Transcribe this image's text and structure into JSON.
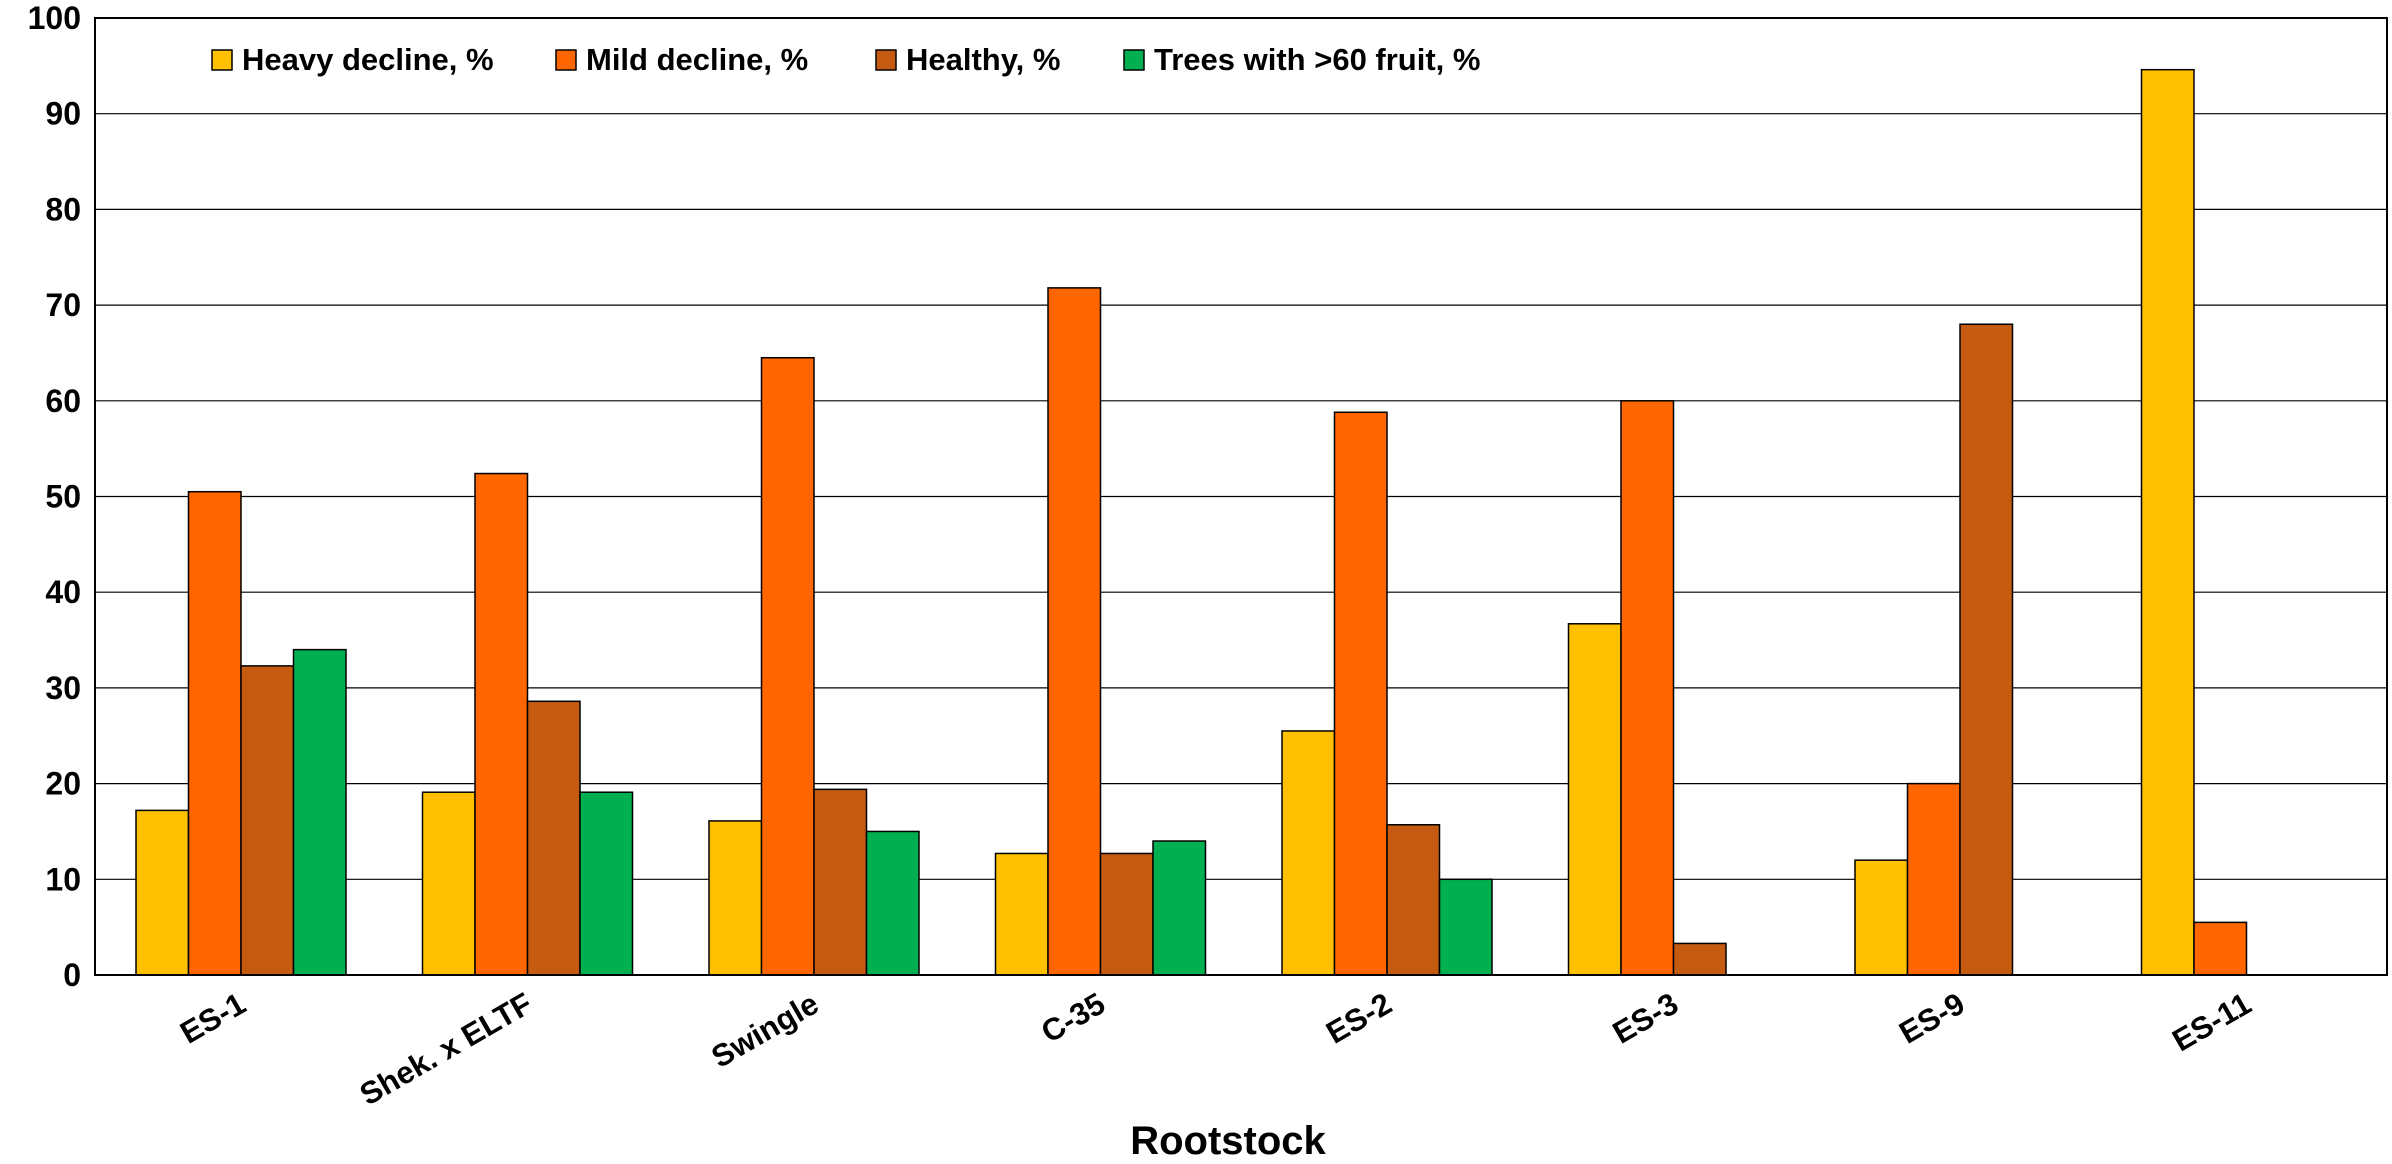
{
  "chart_data": {
    "type": "bar",
    "xlabel": "Rootstock",
    "ylabel": "",
    "ylim": [
      0,
      100
    ],
    "yticks": [
      0,
      10,
      20,
      30,
      40,
      50,
      60,
      70,
      80,
      90,
      100
    ],
    "grid": true,
    "legend_position": "top-left",
    "categories": [
      "ES-1",
      "Shek. x ELTF",
      "Swingle",
      "C-35",
      "ES-2",
      "ES-3",
      "ES-9",
      "ES-11"
    ],
    "series": [
      {
        "name": "Heavy decline, %",
        "color": "#FFC000",
        "values": [
          17.2,
          19.1,
          16.1,
          12.7,
          25.5,
          36.7,
          12.0,
          94.6
        ]
      },
      {
        "name": "Mild decline, %",
        "color": "#FF6600",
        "values": [
          50.5,
          52.4,
          64.5,
          71.8,
          58.8,
          60.0,
          20.0,
          5.5
        ]
      },
      {
        "name": "Healthy, %",
        "color": "#C55A11",
        "values": [
          32.3,
          28.6,
          19.4,
          12.7,
          15.7,
          3.3,
          68.0,
          0
        ]
      },
      {
        "name": "Trees with >60 fruit, %",
        "color": "#00B050",
        "values": [
          34.0,
          19.1,
          15.0,
          14.0,
          10.0,
          0,
          0,
          0
        ]
      }
    ]
  }
}
